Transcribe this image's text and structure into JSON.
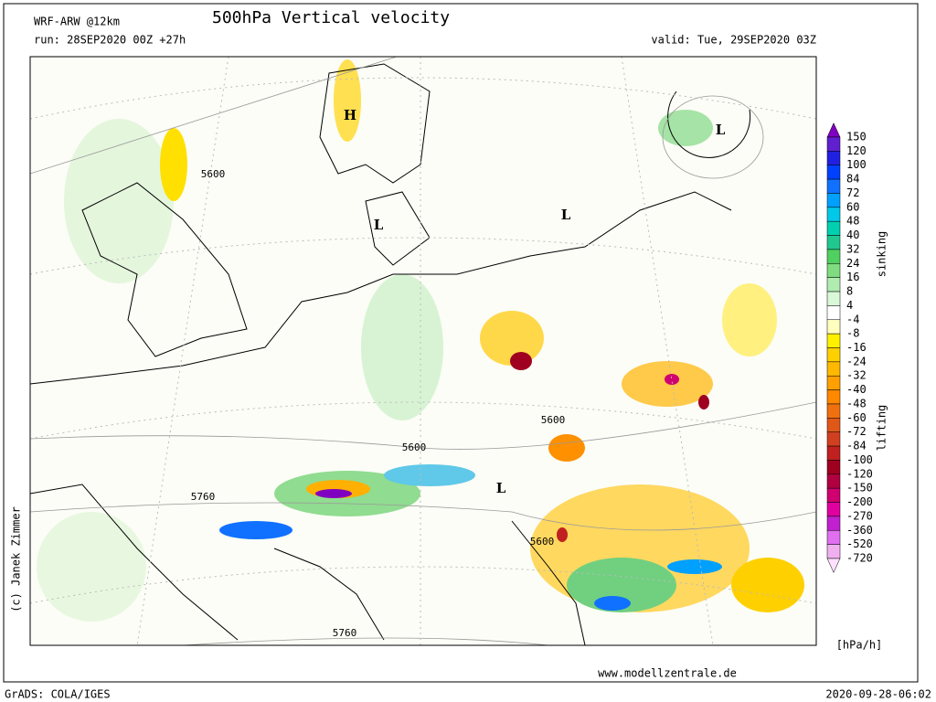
{
  "header": {
    "model": "WRF-ARW @12km",
    "title": "500hPa Vertical velocity",
    "run": "run: 28SEP2020 00Z +27h",
    "valid": "valid: Tue, 29SEP2020 03Z"
  },
  "map": {
    "pressure_centers": [
      "H",
      "L",
      "L",
      "L",
      "L"
    ],
    "contour_labels": [
      "5600",
      "5600",
      "5600",
      "5760",
      "5600",
      "5760"
    ],
    "credit": "(c) Janek Zimmer"
  },
  "colorbar": {
    "labels": [
      "150",
      "120",
      "100",
      "84",
      "72",
      "60",
      "48",
      "40",
      "32",
      "24",
      "16",
      "8",
      "4",
      "-4",
      "-8",
      "-16",
      "-24",
      "-32",
      "-40",
      "-48",
      "-60",
      "-72",
      "-84",
      "-100",
      "-120",
      "-150",
      "-200",
      "-270",
      "-360",
      "-520",
      "-720"
    ],
    "colors": [
      "#8000c0",
      "#6020d0",
      "#2020e0",
      "#0040ff",
      "#1070ff",
      "#00a0ff",
      "#00c8e8",
      "#00d0b0",
      "#20c890",
      "#50d060",
      "#80dc80",
      "#b0ecb0",
      "#d8f8d8",
      "#ffffff",
      "#ffffc0",
      "#fff000",
      "#ffd000",
      "#ffb800",
      "#ffa000",
      "#ff8800",
      "#f07010",
      "#e05818",
      "#d04020",
      "#c02020",
      "#a00020",
      "#b00040",
      "#d00070",
      "#e000a0",
      "#c020d0",
      "#e070f0",
      "#f0b0f0",
      "#ffe0ff"
    ],
    "upper_label": "sinking",
    "lower_label": "lifting",
    "unit": "[hPa/h]"
  },
  "footer": {
    "url": "www.modellzentrale.de",
    "software": "GrADS: COLA/IGES",
    "timestamp": "2020-09-28-06:02"
  }
}
